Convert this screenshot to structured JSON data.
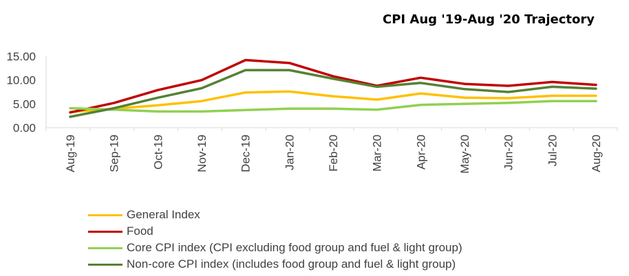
{
  "chart_data": {
    "type": "line",
    "title": "CPI Aug '19-Aug '20 Trajectory",
    "xlabel": "",
    "ylabel": "",
    "ylim": [
      0,
      15
    ],
    "yticks": [
      "0.00",
      "5.00",
      "10.00",
      "15.00"
    ],
    "categories": [
      "Aug-19",
      "Sep-19",
      "Oct-19",
      "Nov-19",
      "Dec-19",
      "Jan-20",
      "Feb-20",
      "Mar-20",
      "Apr-20",
      "May-20",
      "Jun-20",
      "Jul-20",
      "Aug-20"
    ],
    "grid": false,
    "legend_position": "bottom",
    "series": [
      {
        "name": "General Index",
        "color": "#ffc000",
        "values": [
          3.3,
          4.0,
          4.7,
          5.6,
          7.4,
          7.6,
          6.6,
          5.9,
          7.2,
          6.3,
          6.2,
          6.7,
          6.7
        ]
      },
      {
        "name": "Food",
        "color": "#c00000",
        "values": [
          3.2,
          5.2,
          7.9,
          10.0,
          14.2,
          13.6,
          10.8,
          8.8,
          10.5,
          9.2,
          8.8,
          9.6,
          9.0
        ]
      },
      {
        "name": "Core CPI index (CPI excluding food group and fuel & light  group)",
        "color": "#92d050",
        "values": [
          4.1,
          3.8,
          3.4,
          3.4,
          3.7,
          4.0,
          4.0,
          3.8,
          4.8,
          5.0,
          5.2,
          5.6,
          5.6
        ]
      },
      {
        "name": "Non-core CPI index (includes food group and fuel & light  group)",
        "color": "#548235",
        "values": [
          2.3,
          4.1,
          6.3,
          8.3,
          12.1,
          12.1,
          10.3,
          8.6,
          9.4,
          8.1,
          7.5,
          8.6,
          8.2
        ]
      }
    ]
  }
}
